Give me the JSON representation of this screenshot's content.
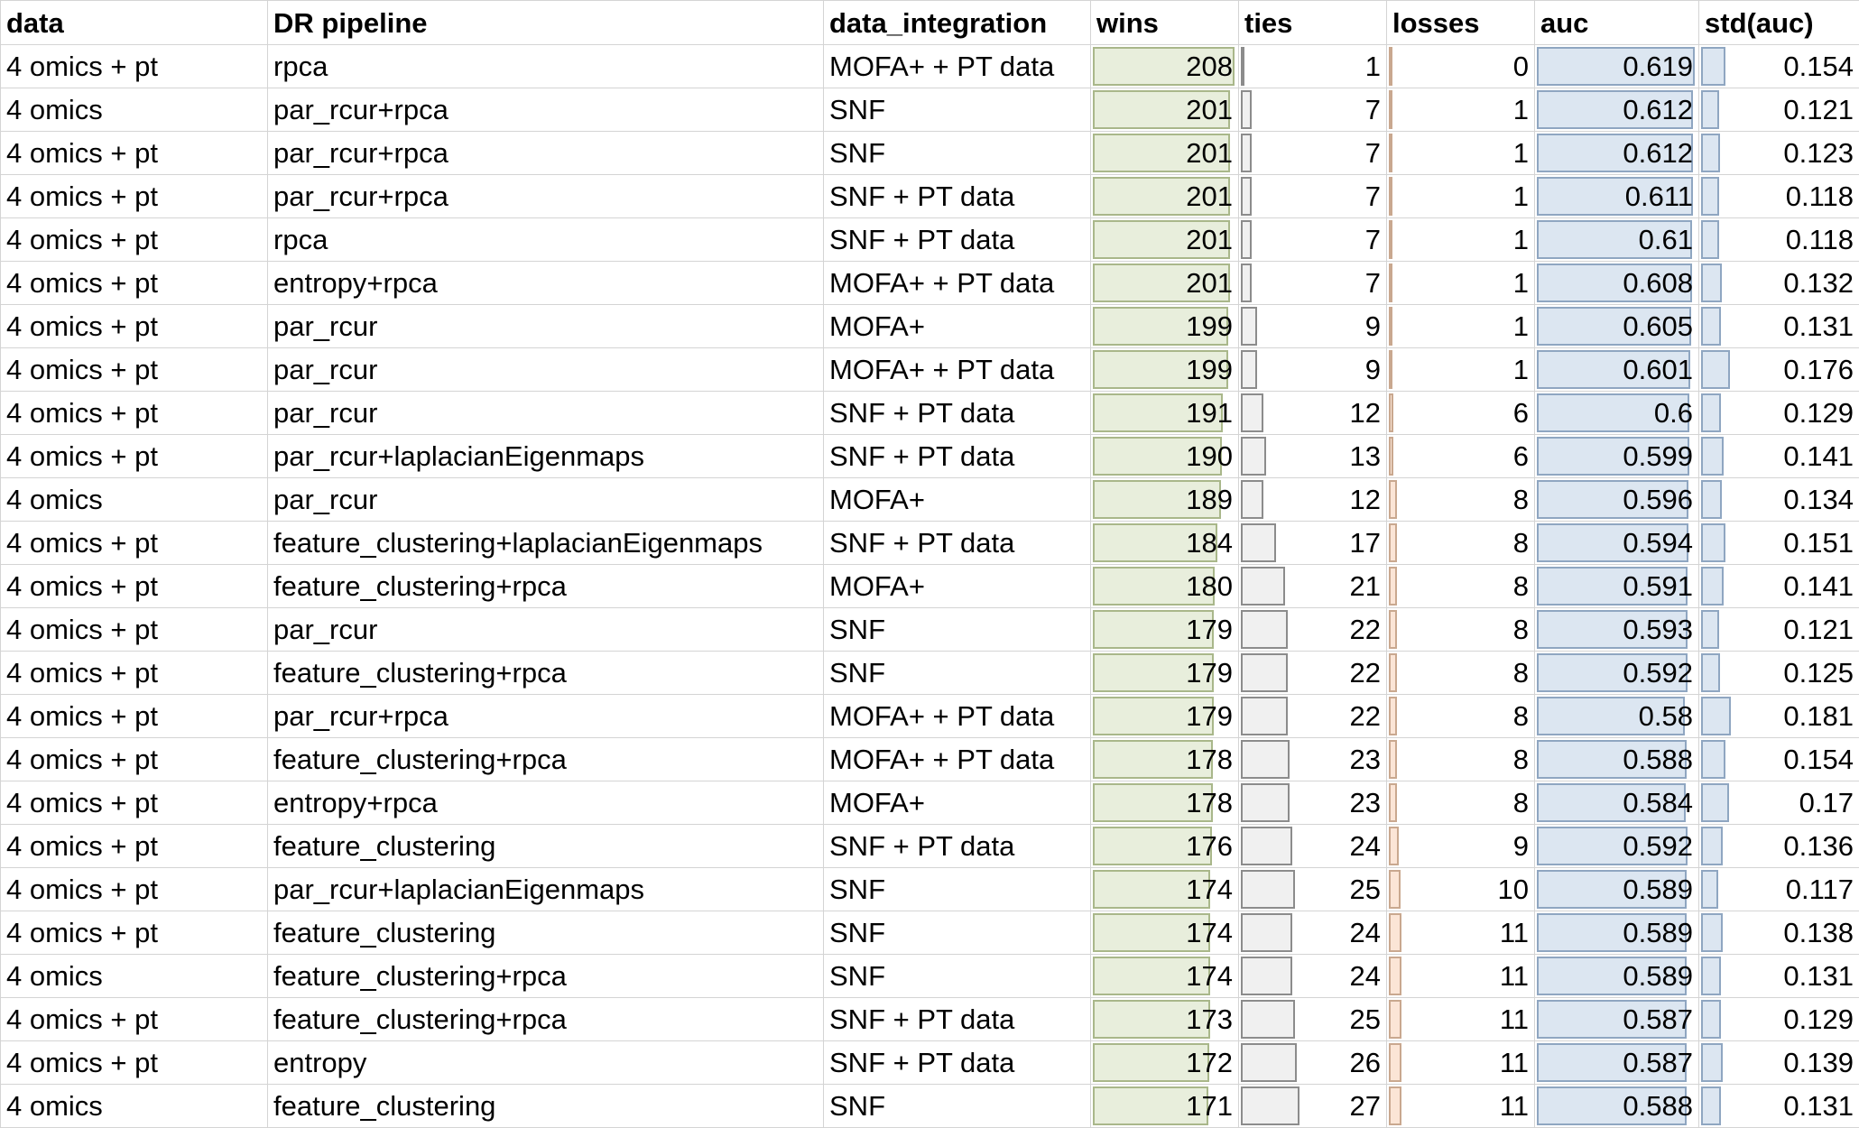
{
  "headers": {
    "data": "data",
    "dr_pipeline": "DR pipeline",
    "data_integration": "data_integration",
    "wins": "wins",
    "ties": "ties",
    "losses": "losses",
    "auc": "auc",
    "std_auc": "std(auc)"
  },
  "databar_colors": {
    "wins": "#e8eedc",
    "ties": "#f0f0f0",
    "losses": "#fbe5d6",
    "auc": "#dce6f1",
    "std_auc": "#dce6f1"
  },
  "rows": [
    {
      "data": "4 omics + pt",
      "dr": "rpca",
      "integration": "MOFA+ + PT data",
      "wins": "208",
      "ties": "1",
      "losses": "0",
      "auc": "0.619",
      "std": "0.154"
    },
    {
      "data": "4 omics",
      "dr": "par_rcur+rpca",
      "integration": "SNF",
      "wins": "201",
      "ties": "7",
      "losses": "1",
      "auc": "0.612",
      "std": "0.121"
    },
    {
      "data": "4 omics + pt",
      "dr": "par_rcur+rpca",
      "integration": "SNF",
      "wins": "201",
      "ties": "7",
      "losses": "1",
      "auc": "0.612",
      "std": "0.123"
    },
    {
      "data": "4 omics + pt",
      "dr": "par_rcur+rpca",
      "integration": "SNF + PT data",
      "wins": "201",
      "ties": "7",
      "losses": "1",
      "auc": "0.611",
      "std": "0.118"
    },
    {
      "data": "4 omics + pt",
      "dr": "rpca",
      "integration": "SNF + PT data",
      "wins": "201",
      "ties": "7",
      "losses": "1",
      "auc": "0.61",
      "std": "0.118"
    },
    {
      "data": "4 omics + pt",
      "dr": "entropy+rpca",
      "integration": "MOFA+ + PT data",
      "wins": "201",
      "ties": "7",
      "losses": "1",
      "auc": "0.608",
      "std": "0.132"
    },
    {
      "data": "4 omics + pt",
      "dr": "par_rcur",
      "integration": "MOFA+",
      "wins": "199",
      "ties": "9",
      "losses": "1",
      "auc": "0.605",
      "std": "0.131"
    },
    {
      "data": "4 omics + pt",
      "dr": "par_rcur",
      "integration": "MOFA+ + PT data",
      "wins": "199",
      "ties": "9",
      "losses": "1",
      "auc": "0.601",
      "std": "0.176"
    },
    {
      "data": "4 omics + pt",
      "dr": "par_rcur",
      "integration": "SNF + PT data",
      "wins": "191",
      "ties": "12",
      "losses": "6",
      "auc": "0.6",
      "std": "0.129"
    },
    {
      "data": "4 omics + pt",
      "dr": "par_rcur+laplacianEigenmaps",
      "integration": "SNF + PT data",
      "wins": "190",
      "ties": "13",
      "losses": "6",
      "auc": "0.599",
      "std": "0.141"
    },
    {
      "data": "4 omics",
      "dr": "par_rcur",
      "integration": "MOFA+",
      "wins": "189",
      "ties": "12",
      "losses": "8",
      "auc": "0.596",
      "std": "0.134"
    },
    {
      "data": "4 omics + pt",
      "dr": "feature_clustering+laplacianEigenmaps",
      "integration": "SNF + PT data",
      "wins": "184",
      "ties": "17",
      "losses": "8",
      "auc": "0.594",
      "std": "0.151"
    },
    {
      "data": "4 omics + pt",
      "dr": "feature_clustering+rpca",
      "integration": "MOFA+",
      "wins": "180",
      "ties": "21",
      "losses": "8",
      "auc": "0.591",
      "std": "0.141"
    },
    {
      "data": "4 omics + pt",
      "dr": "par_rcur",
      "integration": "SNF",
      "wins": "179",
      "ties": "22",
      "losses": "8",
      "auc": "0.593",
      "std": "0.121"
    },
    {
      "data": "4 omics + pt",
      "dr": "feature_clustering+rpca",
      "integration": "SNF",
      "wins": "179",
      "ties": "22",
      "losses": "8",
      "auc": "0.592",
      "std": "0.125"
    },
    {
      "data": "4 omics + pt",
      "dr": "par_rcur+rpca",
      "integration": "MOFA+ + PT data",
      "wins": "179",
      "ties": "22",
      "losses": "8",
      "auc": "0.58",
      "std": "0.181"
    },
    {
      "data": "4 omics + pt",
      "dr": "feature_clustering+rpca",
      "integration": "MOFA+ + PT data",
      "wins": "178",
      "ties": "23",
      "losses": "8",
      "auc": "0.588",
      "std": "0.154"
    },
    {
      "data": "4 omics + pt",
      "dr": "entropy+rpca",
      "integration": "MOFA+",
      "wins": "178",
      "ties": "23",
      "losses": "8",
      "auc": "0.584",
      "std": "0.17"
    },
    {
      "data": "4 omics + pt",
      "dr": "feature_clustering",
      "integration": "SNF + PT data",
      "wins": "176",
      "ties": "24",
      "losses": "9",
      "auc": "0.592",
      "std": "0.136"
    },
    {
      "data": "4 omics + pt",
      "dr": "par_rcur+laplacianEigenmaps",
      "integration": "SNF",
      "wins": "174",
      "ties": "25",
      "losses": "10",
      "auc": "0.589",
      "std": "0.117"
    },
    {
      "data": "4 omics + pt",
      "dr": "feature_clustering",
      "integration": "SNF",
      "wins": "174",
      "ties": "24",
      "losses": "11",
      "auc": "0.589",
      "std": "0.138"
    },
    {
      "data": "4 omics",
      "dr": "feature_clustering+rpca",
      "integration": "SNF",
      "wins": "174",
      "ties": "24",
      "losses": "11",
      "auc": "0.589",
      "std": "0.131"
    },
    {
      "data": "4 omics + pt",
      "dr": "feature_clustering+rpca",
      "integration": "SNF + PT data",
      "wins": "173",
      "ties": "25",
      "losses": "11",
      "auc": "0.587",
      "std": "0.129"
    },
    {
      "data": "4 omics + pt",
      "dr": "entropy",
      "integration": "SNF + PT data",
      "wins": "172",
      "ties": "26",
      "losses": "11",
      "auc": "0.587",
      "std": "0.139"
    },
    {
      "data": "4 omics",
      "dr": "feature_clustering",
      "integration": "SNF",
      "wins": "171",
      "ties": "27",
      "losses": "11",
      "auc": "0.588",
      "std": "0.131"
    }
  ]
}
